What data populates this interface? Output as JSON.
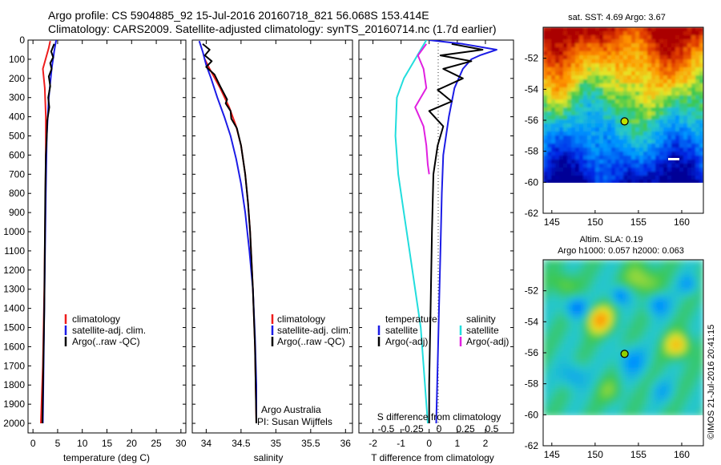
{
  "header": {
    "line1": "Argo profile: CS 5904885_92 15-Jul-2016 20160718_821 56.068S 153.414E",
    "line2": "Climatology: CARS2009. Satellite-adjusted climatology: synTS_20160714.nc (1.7d earlier)"
  },
  "colors": {
    "climatology": "#ee1c1c",
    "satellite": "#1c1ce6",
    "argo": "#000000",
    "sal_satellite": "#22dddd",
    "sal_argo": "#e020e0"
  },
  "chart_data": [
    {
      "id": "temperature",
      "type": "line",
      "xlabel": "temperature (deg C)",
      "ylabel": "",
      "xlim": [
        -1,
        31
      ],
      "ylim": [
        2050,
        0
      ],
      "xticks": [
        0,
        5,
        10,
        15,
        20,
        25,
        30
      ],
      "yticks": [
        0,
        100,
        200,
        300,
        400,
        500,
        600,
        700,
        800,
        900,
        1000,
        1100,
        1200,
        1300,
        1400,
        1500,
        1600,
        1700,
        1800,
        1900,
        2000
      ],
      "legend": [
        "climatology",
        "satellite-adj. clim.",
        "Argo(..raw -QC)"
      ],
      "series": [
        {
          "name": "climatology",
          "color": "#ee1c1c",
          "points": [
            [
              3.5,
              5
            ],
            [
              3.2,
              40
            ],
            [
              2.0,
              150
            ],
            [
              2.4,
              250
            ],
            [
              2.6,
              400
            ],
            [
              2.6,
              600
            ],
            [
              2.5,
              900
            ],
            [
              2.3,
              1300
            ],
            [
              2.0,
              1700
            ],
            [
              1.6,
              2000
            ]
          ]
        },
        {
          "name": "satellite-adj. clim.",
          "color": "#1c1ce6",
          "points": [
            [
              4.7,
              0
            ],
            [
              4.3,
              60
            ],
            [
              3.8,
              150
            ],
            [
              3.2,
              300
            ],
            [
              2.8,
              500
            ],
            [
              2.6,
              800
            ],
            [
              2.4,
              1200
            ],
            [
              2.2,
              1600
            ],
            [
              2.0,
              2000
            ]
          ]
        },
        {
          "name": "Argo(..raw -QC)",
          "color": "#000000",
          "points": [
            [
              4.3,
              20
            ],
            [
              3.7,
              60
            ],
            [
              4.1,
              90
            ],
            [
              3.5,
              120
            ],
            [
              3.8,
              150
            ],
            [
              3.2,
              190
            ],
            [
              3.5,
              240
            ],
            [
              3.1,
              300
            ],
            [
              3.3,
              350
            ],
            [
              2.9,
              420
            ],
            [
              2.8,
              500
            ],
            [
              2.6,
              600
            ],
            [
              2.5,
              800
            ],
            [
              2.4,
              1100
            ],
            [
              2.3,
              1400
            ],
            [
              2.1,
              1700
            ],
            [
              1.9,
              2000
            ]
          ]
        }
      ]
    },
    {
      "id": "salinity",
      "type": "line",
      "xlabel": "salinity",
      "ylabel": "",
      "xlim": [
        33.8,
        36.1
      ],
      "ylim": [
        2050,
        0
      ],
      "xticks": [
        34,
        34.5,
        35,
        35.5,
        36
      ],
      "xtick_labels": [
        "34",
        "34.5",
        "35",
        "35.5",
        "36"
      ],
      "legend": [
        "climatology",
        "satellite-adj. clim.",
        "Argo(..raw -QC)"
      ],
      "credits": [
        "Argo Australia",
        "PI: Susan Wijffels"
      ],
      "series": [
        {
          "name": "climatology",
          "color": "#ee1c1c",
          "points": [
            [
              33.98,
              100
            ],
            [
              34.05,
              150
            ],
            [
              34.2,
              250
            ],
            [
              34.33,
              350
            ],
            [
              34.43,
              450
            ],
            [
              34.5,
              550
            ],
            [
              34.56,
              700
            ],
            [
              34.6,
              850
            ],
            [
              34.63,
              1000
            ],
            [
              34.67,
              1300
            ],
            [
              34.7,
              1600
            ],
            [
              34.72,
              2000
            ]
          ]
        },
        {
          "name": "satellite-adj. clim.",
          "color": "#1c1ce6",
          "points": [
            [
              33.9,
              5
            ],
            [
              33.95,
              60
            ],
            [
              34.0,
              130
            ],
            [
              34.07,
              200
            ],
            [
              34.16,
              300
            ],
            [
              34.26,
              400
            ],
            [
              34.35,
              500
            ],
            [
              34.43,
              620
            ],
            [
              34.5,
              750
            ],
            [
              34.56,
              900
            ],
            [
              34.62,
              1100
            ],
            [
              34.67,
              1300
            ],
            [
              34.7,
              1550
            ],
            [
              34.72,
              1800
            ],
            [
              34.72,
              2000
            ]
          ]
        },
        {
          "name": "Argo(..raw -QC)",
          "color": "#000000",
          "points": [
            [
              33.95,
              20
            ],
            [
              34.05,
              50
            ],
            [
              33.98,
              80
            ],
            [
              34.08,
              110
            ],
            [
              34.0,
              140
            ],
            [
              34.12,
              180
            ],
            [
              34.2,
              240
            ],
            [
              34.3,
              310
            ],
            [
              34.28,
              330
            ],
            [
              34.35,
              370
            ],
            [
              34.36,
              410
            ],
            [
              34.44,
              460
            ],
            [
              34.5,
              550
            ],
            [
              34.56,
              700
            ],
            [
              34.6,
              850
            ],
            [
              34.63,
              1000
            ],
            [
              34.67,
              1300
            ],
            [
              34.7,
              1600
            ],
            [
              34.72,
              2000
            ]
          ]
        }
      ]
    },
    {
      "id": "differences",
      "type": "line",
      "xlabel": "T difference from climatology",
      "xlabel_top": "S difference from climatology",
      "xlim": [
        -2.5,
        3.0
      ],
      "ylim": [
        2050,
        0
      ],
      "xticks": [
        -2,
        -1,
        0,
        1,
        2
      ],
      "xtick_labels": [
        "-2",
        "-1",
        "0",
        "1",
        "2"
      ],
      "sticks": [
        -0.5,
        -0.25,
        0,
        0.25,
        0.5
      ],
      "stick_labels": [
        "-0.5",
        "-0.25",
        "0",
        "0.25",
        "0.5"
      ],
      "legend_temperature": {
        "heading": "temperature",
        "items": [
          "satellite",
          "Argo(-adj)"
        ]
      },
      "legend_salinity": {
        "heading": "salinity",
        "items": [
          "satellite",
          "Argo(-adj)"
        ]
      },
      "series": [
        {
          "name": "T satellite",
          "color": "#1c1ce6",
          "points": [
            [
              0,
              0
            ],
            [
              1.2,
              20
            ],
            [
              2.4,
              50
            ],
            [
              1.8,
              80
            ],
            [
              1.5,
              100
            ],
            [
              1.2,
              150
            ],
            [
              0.9,
              250
            ],
            [
              0.7,
              400
            ],
            [
              0.5,
              600
            ],
            [
              0.45,
              800
            ],
            [
              0.4,
              1100
            ],
            [
              0.35,
              1400
            ],
            [
              0.3,
              1700
            ],
            [
              0.25,
              2000
            ]
          ]
        },
        {
          "name": "S satellite",
          "color": "#22dddd",
          "points": [
            [
              -0.1,
              0
            ],
            [
              -0.5,
              100
            ],
            [
              -0.9,
              200
            ],
            [
              -1.15,
              300
            ],
            [
              -1.2,
              500
            ],
            [
              -1.1,
              700
            ],
            [
              -0.9,
              900
            ],
            [
              -0.7,
              1100
            ],
            [
              -0.5,
              1300
            ],
            [
              -0.3,
              1500
            ],
            [
              -0.15,
              1800
            ],
            [
              -0.05,
              2000
            ]
          ]
        },
        {
          "name": "T Argo(-adj)",
          "color": "#000000",
          "points": [
            [
              0.8,
              20
            ],
            [
              1.9,
              50
            ],
            [
              0.4,
              80
            ],
            [
              1.5,
              110
            ],
            [
              0.5,
              150
            ],
            [
              1.2,
              200
            ],
            [
              0.3,
              260
            ],
            [
              0.8,
              320
            ],
            [
              0.0,
              370
            ],
            [
              0.5,
              450
            ],
            [
              0.3,
              550
            ],
            [
              0.15,
              700
            ],
            [
              0.1,
              1000
            ],
            [
              0.05,
              1400
            ],
            [
              0.0,
              1800
            ],
            [
              0.0,
              2000
            ]
          ]
        },
        {
          "name": "S Argo(-adj)",
          "color": "#e020e0",
          "points": [
            [
              -0.1,
              20
            ],
            [
              -0.4,
              80
            ],
            [
              -0.2,
              150
            ],
            [
              -0.1,
              250
            ],
            [
              -0.5,
              350
            ],
            [
              -0.2,
              450
            ],
            [
              -0.1,
              550
            ],
            [
              -0.05,
              650
            ],
            [
              0.0,
              700
            ]
          ]
        }
      ]
    },
    {
      "id": "sst_map",
      "type": "heatmap",
      "title": "sat. SST: 4.69 Argo: 3.67",
      "xlim": [
        144,
        162.5
      ],
      "ylim": [
        -62,
        -50
      ],
      "xticks": [
        145,
        150,
        155,
        160
      ],
      "yticks": [
        -52,
        -54,
        -56,
        -58,
        -60,
        -62
      ],
      "float_position": [
        153.4,
        -56.07
      ]
    },
    {
      "id": "sla_map",
      "type": "heatmap",
      "title": "Altim. SLA: 0.19",
      "subtitle": "Argo h1000: 0.057 h2000: 0.063",
      "xlim": [
        144,
        162.5
      ],
      "ylim": [
        -62,
        -50
      ],
      "xticks": [
        145,
        150,
        155,
        160
      ],
      "yticks": [
        -52,
        -54,
        -56,
        -58,
        -60,
        -62
      ],
      "float_position": [
        153.4,
        -56.07
      ]
    }
  ],
  "watermark": "©IMOS 21-Jul-2016 20:41:15"
}
